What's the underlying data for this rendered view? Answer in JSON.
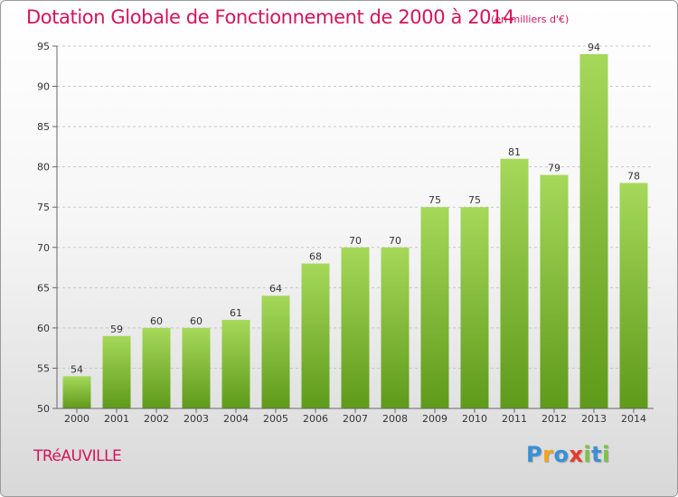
{
  "title": "Dotation Globale de Fonctionnement de 2000 à 2014",
  "subtitle": "(en milliers d'€)",
  "commune": "TRéAUVILLE",
  "logo": {
    "text": "Proxiti",
    "letters": [
      {
        "char": "P",
        "color": "#3a8fd6"
      },
      {
        "char": "r",
        "color": "#f4a21c"
      },
      {
        "char": "o",
        "color": "#3a8fd6"
      },
      {
        "char": "x",
        "color": "#e8392d"
      },
      {
        "char": "i",
        "color": "#7cc242"
      },
      {
        "char": "t",
        "color": "#3a8fd6"
      },
      {
        "char": "i",
        "color": "#7cc242"
      }
    ]
  },
  "colors": {
    "title": "#d4145a",
    "bar_top": "#a6d85a",
    "bar_bottom": "#5f9a1a",
    "grid": "#c8c8c8",
    "axis": "#666666"
  },
  "chart_data": {
    "type": "bar",
    "title": "Dotation Globale de Fonctionnement de 2000 à 2014",
    "subtitle": "(en milliers d'€)",
    "xlabel": "",
    "ylabel": "",
    "categories": [
      "2000",
      "2001",
      "2002",
      "2003",
      "2004",
      "2005",
      "2006",
      "2007",
      "2008",
      "2009",
      "2010",
      "2011",
      "2012",
      "2013",
      "2014"
    ],
    "values": [
      54,
      59,
      60,
      60,
      61,
      64,
      68,
      70,
      70,
      75,
      75,
      81,
      79,
      94,
      78
    ],
    "ylim": [
      50,
      95
    ],
    "yticks": [
      50,
      55,
      60,
      65,
      70,
      75,
      80,
      85,
      90,
      95
    ],
    "grid": "horizontal dashed",
    "legend": "none"
  }
}
